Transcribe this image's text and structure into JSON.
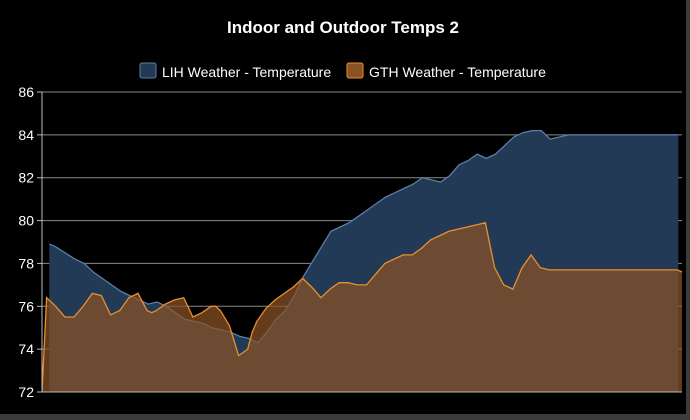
{
  "chart_data": {
    "type": "area",
    "title": "Indoor and Outdoor Temps 2",
    "xlabel": "",
    "ylabel": "",
    "ylim": [
      72,
      86
    ],
    "yticks": [
      72,
      74,
      76,
      78,
      80,
      82,
      84,
      86
    ],
    "grid": true,
    "legend": "top-center",
    "series": [
      {
        "name": "LIH Weather - Temperature",
        "line_color": "#5b7ea8",
        "fill_color": "#223a55",
        "x": [
          0.8,
          1.4,
          2.5,
          3.6,
          4.6,
          5.6,
          6.6,
          7.6,
          8.6,
          9.6,
          10.6,
          11.6,
          12.6,
          13.6,
          14.6,
          15.6,
          16.6,
          17.6,
          18.6,
          19.6,
          20.6,
          21.6,
          22.6,
          23.6,
          24.6,
          25.6,
          26.6,
          27.6,
          28.6,
          29.6,
          30.6,
          31.6,
          32.6,
          33.6,
          34.6,
          35.6,
          36.6,
          37.6,
          38.6,
          39.6,
          40.6,
          41.6,
          42.6,
          43.6,
          44.6,
          45.6,
          46.6,
          47.6,
          48.6,
          49.6,
          50.6,
          51.6,
          52.6,
          53.6,
          54.6,
          55.6,
          56.6,
          57.6,
          58.6,
          59.6,
          60.6,
          61.6,
          62.6,
          63.6,
          64.6,
          65.6,
          66.6,
          67.6,
          68.6,
          69.6
        ],
        "values": [
          78.9,
          78.8,
          78.5,
          78.2,
          78.0,
          77.6,
          77.3,
          77.0,
          76.7,
          76.5,
          76.3,
          76.1,
          76.2,
          76.0,
          75.7,
          75.4,
          75.3,
          75.2,
          75.0,
          74.9,
          74.8,
          74.6,
          74.5,
          74.3,
          74.8,
          75.4,
          75.8,
          76.5,
          77.4,
          78.1,
          78.8,
          79.5,
          79.7,
          79.9,
          80.2,
          80.5,
          80.8,
          81.1,
          81.3,
          81.5,
          81.7,
          82.0,
          81.9,
          81.8,
          82.1,
          82.6,
          82.8,
          83.1,
          82.9,
          83.1,
          83.5,
          83.9,
          84.1,
          84.2,
          84.2,
          83.8,
          83.9,
          84.0,
          84.0,
          84.0,
          84.0,
          84.0,
          84.0,
          84.0,
          84.0,
          84.0,
          84.0,
          84.0,
          84.0,
          84.0
        ]
      },
      {
        "name": "GTH Weather - Temperature",
        "line_color": "#e8902e",
        "fill_color": "#8a5225",
        "x": [
          0.0,
          0.5,
          1.5,
          2.5,
          3.5,
          4.5,
          5.5,
          6.5,
          7.5,
          8.0,
          8.5,
          9.5,
          10.5,
          11.5,
          12.0,
          12.5,
          13.5,
          14.0,
          14.5,
          15.5,
          16.5,
          17.5,
          18.5,
          19.0,
          19.5,
          20.5,
          21.5,
          22.5,
          23.0,
          23.5,
          24.5,
          25.5,
          26.5,
          27.5,
          28.5,
          29.5,
          30.5,
          31.5,
          32.5,
          33.5,
          34.5,
          35.5,
          36.5,
          37.5,
          38.5,
          39.5,
          40.5,
          41.5,
          42.5,
          43.5,
          44.5,
          45.5,
          46.5,
          47.5,
          48.5,
          49.5,
          50.5,
          51.5,
          52.5,
          53.5,
          54.5,
          55.5,
          56.0,
          56.5,
          57.5,
          58.5,
          59.5,
          60.5,
          61.5,
          62.5,
          63.5,
          64.5,
          65.5,
          66.5,
          67.5,
          68.5,
          69.5,
          70.0
        ],
        "values": [
          72.0,
          76.4,
          76.0,
          75.5,
          75.5,
          76.0,
          76.6,
          76.5,
          75.6,
          75.7,
          75.8,
          76.4,
          76.6,
          75.8,
          75.7,
          75.8,
          76.1,
          76.2,
          76.3,
          76.4,
          75.5,
          75.7,
          76.0,
          76.0,
          75.8,
          75.1,
          73.7,
          74.0,
          74.8,
          75.3,
          75.9,
          76.3,
          76.6,
          76.9,
          77.3,
          76.9,
          76.4,
          76.8,
          77.1,
          77.1,
          77.0,
          77.0,
          77.5,
          78.0,
          78.2,
          78.4,
          78.4,
          78.7,
          79.1,
          79.3,
          79.5,
          79.6,
          79.7,
          79.8,
          79.9,
          77.8,
          77.0,
          76.8,
          77.8,
          78.4,
          77.8,
          77.7,
          77.7,
          77.7,
          77.7,
          77.7,
          77.7,
          77.7,
          77.7,
          77.7,
          77.7,
          77.7,
          77.7,
          77.7,
          77.7,
          77.7,
          77.7,
          77.6
        ]
      }
    ]
  }
}
